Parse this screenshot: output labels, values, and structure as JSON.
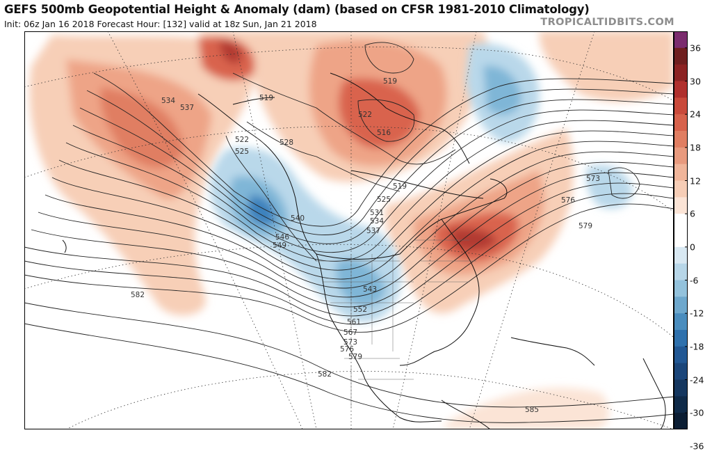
{
  "header": {
    "title": "GEFS 500mb Geopotential Height & Anomaly (dam) (based on CFSR 1981-2010 Climatology)",
    "subtitle": "Init: 06z Jan 16 2018   Forecast Hour: [132]   valid at 18z Sun, Jan 21 2018",
    "brand": "TROPICALTIDBITS.COM"
  },
  "colorbar": {
    "ticks": [
      "36",
      "30",
      "24",
      "18",
      "12",
      "6",
      "0",
      "-6",
      "-12",
      "-18",
      "-24",
      "-30",
      "-36"
    ],
    "colors": [
      "#7b2c6e",
      "#6f1f1f",
      "#8c2323",
      "#b0302d",
      "#c94a3b",
      "#d7624c",
      "#e07e62",
      "#e89a7e",
      "#f0b59a",
      "#f6cdb6",
      "#fbe4d6",
      "#ffffff",
      "#ffffff",
      "#d8e8f2",
      "#b7d6e8",
      "#93c2dc",
      "#6ea8cd",
      "#4a8dbe",
      "#2f71ad",
      "#225894",
      "#1b467a",
      "#15375f",
      "#0f2a48",
      "#0b1d33"
    ]
  },
  "map": {
    "height_labels": [
      "534",
      "537",
      "519",
      "522",
      "525",
      "528",
      "519",
      "522",
      "516",
      "519",
      "525",
      "531",
      "534",
      "537",
      "540",
      "543",
      "546",
      "549",
      "552",
      "561",
      "567",
      "573",
      "576",
      "579",
      "582",
      "582",
      "573",
      "576",
      "579",
      "585"
    ],
    "colors": {
      "warm_light": "#f7cfb7",
      "warm_mid": "#eea487",
      "warm_strong": "#d9634d",
      "warm_core": "#b23a30",
      "cool_light": "#b9d8ea",
      "cool_mid": "#7fb6d7",
      "cool_strong": "#3e82bd"
    }
  }
}
